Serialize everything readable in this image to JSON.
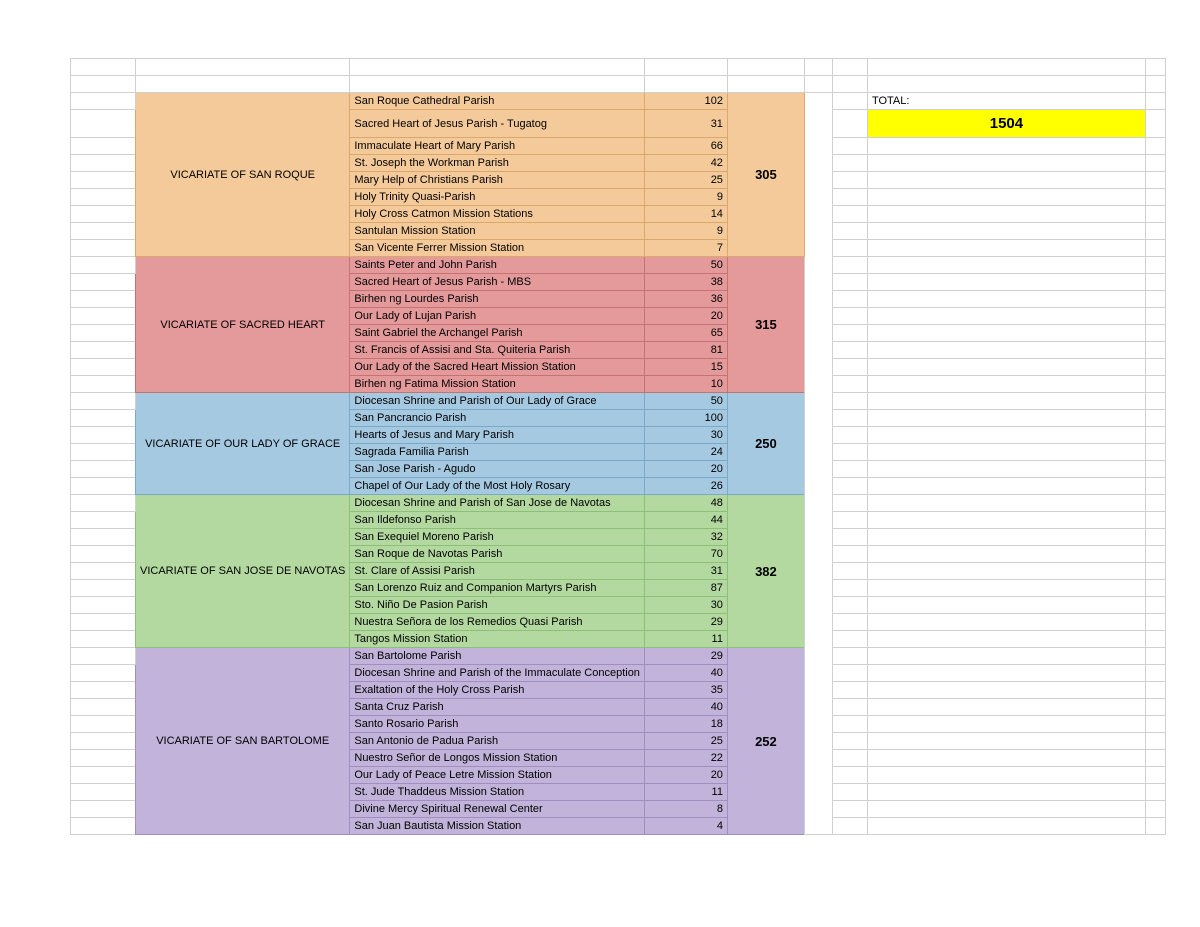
{
  "total_label": "TOTAL:",
  "total_value": "1504",
  "colors": {
    "grid": "#d0d0d0",
    "total_bg": "#ffff00"
  },
  "vicariates": [
    {
      "name": "VICARIATE OF SAN ROQUE",
      "bg": "#f5ca9a",
      "border": "#d9a86c",
      "subtotal": "305",
      "parishes": [
        {
          "name": "San Roque Cathedral Parish",
          "value": "102"
        },
        {
          "name": "Sacred Heart of Jesus Parish - Tugatog",
          "value": "31"
        },
        {
          "name": "Immaculate Heart of Mary Parish",
          "value": "66"
        },
        {
          "name": "St. Joseph the Workman Parish",
          "value": "42"
        },
        {
          "name": "Mary Help of Christians Parish",
          "value": "25"
        },
        {
          "name": "Holy Trinity Quasi-Parish",
          "value": "9"
        },
        {
          "name": "Holy Cross Catmon Mission Stations",
          "value": "14"
        },
        {
          "name": "Santulan Mission Station",
          "value": "9"
        },
        {
          "name": "San Vicente Ferrer Mission Station",
          "value": "7"
        }
      ]
    },
    {
      "name": "VICARIATE OF SACRED HEART",
      "bg": "#e49a9a",
      "border": "#c57272",
      "subtotal": "315",
      "parishes": [
        {
          "name": "Saints Peter and John Parish",
          "value": "50"
        },
        {
          "name": "Sacred Heart of Jesus Parish - MBS",
          "value": "38"
        },
        {
          "name": "Birhen ng Lourdes Parish",
          "value": "36"
        },
        {
          "name": "Our Lady of Lujan Parish",
          "value": "20"
        },
        {
          "name": "Saint Gabriel the Archangel Parish",
          "value": "65"
        },
        {
          "name": "St. Francis of Assisi and Sta. Quiteria Parish",
          "value": "81"
        },
        {
          "name": "Our Lady of the Sacred Heart Mission Station",
          "value": "15"
        },
        {
          "name": "Birhen ng Fatima Mission Station",
          "value": "10"
        }
      ]
    },
    {
      "name": "VICARIATE OF OUR LADY OF GRACE",
      "bg": "#a6c9e2",
      "border": "#7aa9c9",
      "subtotal": "250",
      "parishes": [
        {
          "name": "Diocesan Shrine and Parish of Our Lady of Grace",
          "value": "50"
        },
        {
          "name": "San Pancrancio Parish",
          "value": "100"
        },
        {
          "name": "Hearts of Jesus and Mary Parish",
          "value": "30"
        },
        {
          "name": "Sagrada Familia Parish",
          "value": "24"
        },
        {
          "name": "San Jose Parish - Agudo",
          "value": "20"
        },
        {
          "name": "Chapel of Our Lady of the Most Holy Rosary",
          "value": "26"
        }
      ]
    },
    {
      "name": "VICARIATE OF SAN JOSE DE NAVOTAS",
      "bg": "#b3d9a0",
      "border": "#8cbf78",
      "subtotal": "382",
      "parishes": [
        {
          "name": "Diocesan Shrine and Parish of San Jose de Navotas",
          "value": "48"
        },
        {
          "name": "San Ildefonso Parish",
          "value": "44"
        },
        {
          "name": "San Exequiel Moreno Parish",
          "value": "32"
        },
        {
          "name": "San Roque de Navotas Parish",
          "value": "70"
        },
        {
          "name": "St. Clare of Assisi Parish",
          "value": "31"
        },
        {
          "name": "San Lorenzo Ruiz and Companion Martyrs Parish",
          "value": "87"
        },
        {
          "name": "Sto. Niño De Pasion Parish",
          "value": "30"
        },
        {
          "name": "Nuestra Señora de los Remedios Quasi Parish",
          "value": "29"
        },
        {
          "name": "Tangos Mission Station",
          "value": "11"
        }
      ]
    },
    {
      "name": "VICARIATE OF SAN BARTOLOME",
      "bg": "#c1b3d9",
      "border": "#9f8fc0",
      "subtotal": "252",
      "parishes": [
        {
          "name": "San Bartolome Parish",
          "value": "29"
        },
        {
          "name": "Diocesan Shrine and Parish of the Immaculate Conception",
          "value": "40"
        },
        {
          "name": "Exaltation of the Holy Cross Parish",
          "value": "35"
        },
        {
          "name": "Santa Cruz Parish",
          "value": "40"
        },
        {
          "name": "Santo Rosario Parish",
          "value": "18"
        },
        {
          "name": "San Antonio de Padua Parish",
          "value": "25"
        },
        {
          "name": "Nuestro Señor de Longos Mission Station",
          "value": "22"
        },
        {
          "name": "Our Lady of Peace Letre Mission Station",
          "value": "20"
        },
        {
          "name": "St. Jude Thaddeus Mission Station",
          "value": "11"
        },
        {
          "name": "Divine Mercy Spiritual Renewal Center",
          "value": "8"
        },
        {
          "name": "San Juan Bautista Mission Station",
          "value": "4"
        }
      ]
    }
  ]
}
